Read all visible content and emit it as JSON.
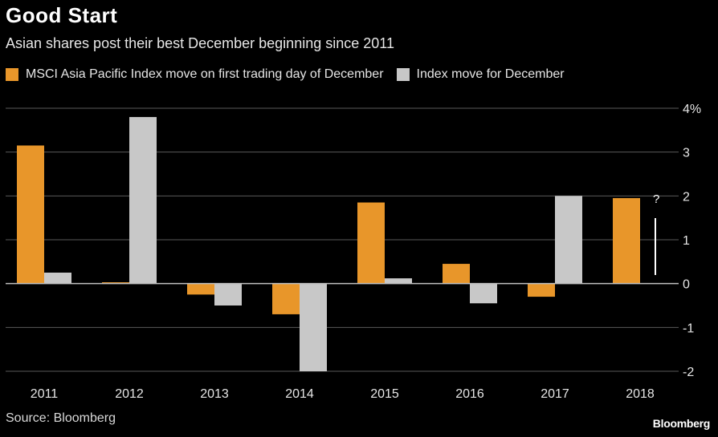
{
  "header": {
    "title": "Good Start",
    "subtitle": "Asian shares post their best December beginning since 2011"
  },
  "footer": {
    "source": "Source: Bloomberg",
    "brand": "Bloomberg"
  },
  "colors": {
    "background": "#000000",
    "orange": "#e8962a",
    "gray": "#c8c8c8",
    "grid": "#5a5a5a",
    "text": "#ffffff"
  },
  "chart_data": {
    "type": "bar",
    "categories": [
      "2011",
      "2012",
      "2013",
      "2014",
      "2015",
      "2016",
      "2017",
      "2018"
    ],
    "series": [
      {
        "name": "MSCI Asia Pacific Index move on first trading day of December",
        "color": "#e8962a",
        "values": [
          3.15,
          0.03,
          -0.25,
          -0.7,
          1.85,
          0.45,
          -0.3,
          1.95
        ]
      },
      {
        "name": "Index move for December",
        "color": "#c8c8c8",
        "values": [
          0.25,
          3.8,
          -0.5,
          -2.0,
          0.12,
          -0.45,
          2.0,
          null
        ]
      }
    ],
    "ylim": [
      -2,
      4
    ],
    "yticks": [
      -2,
      -1,
      0,
      1,
      2,
      3,
      4
    ],
    "ytick_labels": [
      "-2",
      "-1",
      "0",
      "1",
      "2",
      "3",
      "4%"
    ],
    "annotation": "?",
    "grid": true,
    "legend_position": "top-left"
  }
}
